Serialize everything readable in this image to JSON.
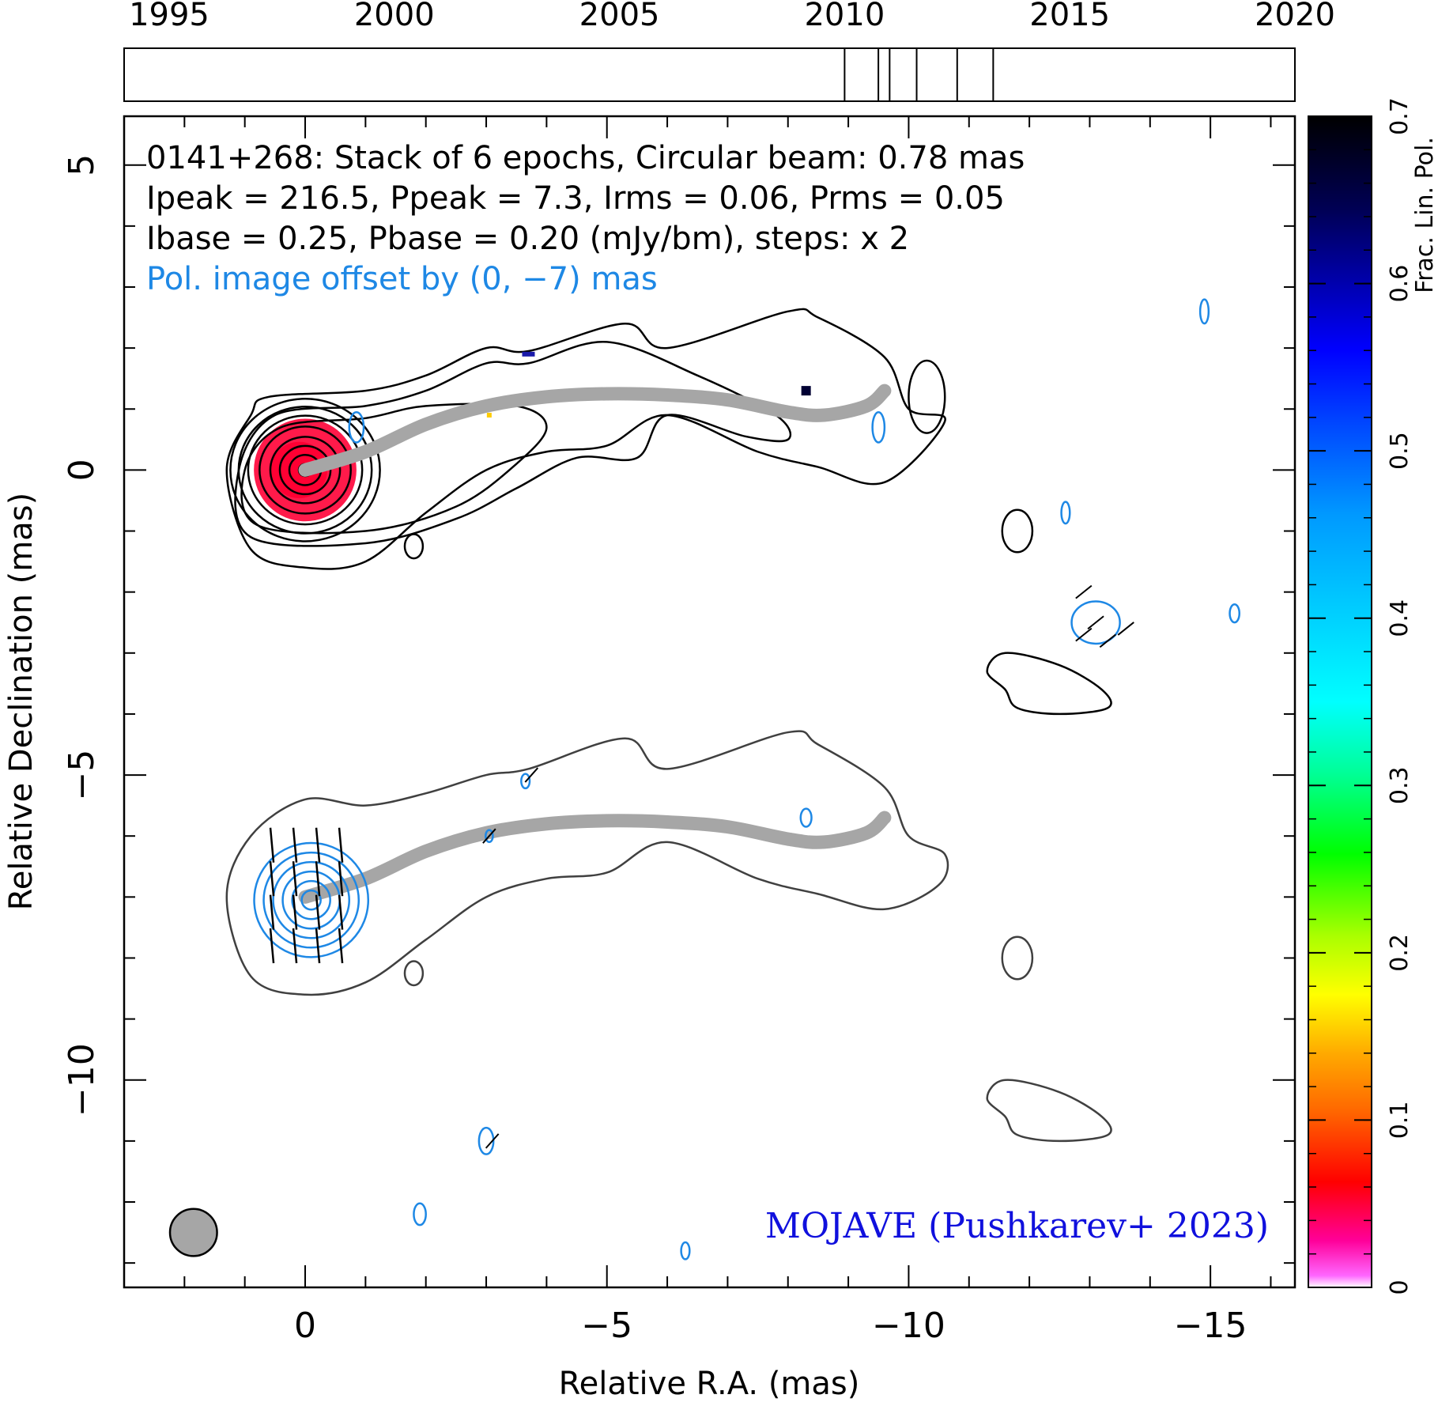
{
  "chart_data": {
    "type": "contour",
    "source_name": "0141+268",
    "annotations": {
      "line1": "0141+268: Stack of 6 epochs, Circular beam: 0.78 mas",
      "line2": "Ipeak = 216.5, Ppeak = 7.3, Irms = 0.06, Prms = 0.05",
      "line3": "Ibase = 0.25, Pbase = 0.20 (mJy/bm), steps: x 2",
      "line4": "Pol. image offset by (0, −7) mas",
      "credit": "MOJAVE (Pushkarev+ 2023)"
    },
    "xlabel": "Relative R.A. (mas)",
    "ylabel": "Relative Declination (mas)",
    "xlim": [
      3,
      -16.4
    ],
    "ylim": [
      -13.4,
      5.8
    ],
    "x_ticks": [
      0,
      -5,
      -10,
      -15
    ],
    "x_tick_labels": [
      "0",
      "−5",
      "−10",
      "−15"
    ],
    "y_ticks": [
      5,
      0,
      -5,
      -10
    ],
    "y_tick_labels": [
      "5",
      "0",
      "−5",
      "−10"
    ],
    "epoch_timeline": {
      "range": [
        1994,
        2020
      ],
      "tick_years": [
        1995,
        2000,
        2005,
        2010,
        2015,
        2020
      ],
      "tick_labels": [
        "1995",
        "2000",
        "2005",
        "2010",
        "2015",
        "2020"
      ],
      "epochs": [
        2010.0,
        2010.75,
        2011.0,
        2011.6,
        2012.5,
        2013.3
      ]
    },
    "colorbar": {
      "label": "Frac. Lin. Pol.",
      "range": [
        0,
        0.7
      ],
      "ticks": [
        0,
        0.1,
        0.2,
        0.3,
        0.4,
        0.5,
        0.6,
        0.7
      ],
      "tick_labels": [
        "0",
        "0.1",
        "0.2",
        "0.3",
        "0.4",
        "0.5",
        "0.6",
        "0.7"
      ]
    },
    "beam": {
      "diameter_mas": 0.78,
      "ra": 1.85,
      "dec": -12.5
    },
    "ridgeline_total": [
      [
        0,
        0
      ],
      [
        -1,
        0.3
      ],
      [
        -2,
        0.75
      ],
      [
        -3,
        1.05
      ],
      [
        -4,
        1.2
      ],
      [
        -5,
        1.25
      ],
      [
        -6,
        1.23
      ],
      [
        -7,
        1.15
      ],
      [
        -8,
        0.95
      ],
      [
        -8.6,
        0.9
      ],
      [
        -9.3,
        1.05
      ],
      [
        -9.6,
        1.3
      ]
    ],
    "ridgeline_pol": [
      [
        0,
        -7
      ],
      [
        -1,
        -6.7
      ],
      [
        -2,
        -6.25
      ],
      [
        -3,
        -5.95
      ],
      [
        -4,
        -5.8
      ],
      [
        -5,
        -5.75
      ],
      [
        -6,
        -5.77
      ],
      [
        -7,
        -5.85
      ],
      [
        -8,
        -6.05
      ],
      [
        -8.6,
        -6.1
      ],
      [
        -9.3,
        -5.95
      ],
      [
        -9.6,
        -5.7
      ]
    ],
    "core_fpol_patch": {
      "ra": 0,
      "dec": 0,
      "radius_mas": 0.85,
      "fpol": 0.03
    },
    "core_contours_ra_dec_radius": [
      0.1,
      0.25,
      0.4,
      0.55,
      0.72,
      0.9,
      1.05,
      1.18
    ],
    "jet_contours_total": [
      [
        [
          0.6,
          1.2
        ],
        [
          -1,
          1.3
        ],
        [
          -2,
          1.55
        ],
        [
          -3,
          2.0
        ],
        [
          -3.7,
          1.95
        ],
        [
          -5.3,
          2.4
        ],
        [
          -6,
          2.0
        ],
        [
          -8,
          2.6
        ],
        [
          -8.5,
          2.5
        ],
        [
          -9.6,
          1.85
        ],
        [
          -10,
          1.0
        ],
        [
          -10.6,
          0.8
        ],
        [
          -9.6,
          -0.2
        ],
        [
          -8.5,
          0.05
        ],
        [
          -7.5,
          0.3
        ],
        [
          -6,
          0.9
        ],
        [
          -5,
          0.4
        ],
        [
          -4,
          0.3
        ],
        [
          -3,
          0
        ],
        [
          -2,
          -0.7
        ],
        [
          -1,
          -1.5
        ],
        [
          0,
          -1.6
        ],
        [
          0.9,
          -1.3
        ],
        [
          1.3,
          0
        ],
        [
          0.9,
          0.9
        ]
      ],
      [
        [
          0.5,
          0.9
        ],
        [
          -1,
          1.05
        ],
        [
          -2,
          1.3
        ],
        [
          -3,
          1.75
        ],
        [
          -3.7,
          1.75
        ],
        [
          -5,
          2.1
        ],
        [
          -6.5,
          1.55
        ],
        [
          -7.8,
          0.9
        ],
        [
          -8,
          0.5
        ],
        [
          -7.3,
          0.55
        ],
        [
          -6,
          0.9
        ],
        [
          -5.5,
          0.2
        ],
        [
          -4.5,
          0.2
        ],
        [
          -3.5,
          -0.3
        ],
        [
          -2.5,
          -0.8
        ],
        [
          -1,
          -1.2
        ],
        [
          0.9,
          -1.1
        ],
        [
          1.1,
          0
        ]
      ],
      [
        [
          0.4,
          0.7
        ],
        [
          -1,
          0.85
        ],
        [
          -2,
          1.05
        ],
        [
          -3.5,
          1.05
        ],
        [
          -4,
          0.7
        ],
        [
          -3.5,
          0.1
        ],
        [
          -2.5,
          -0.6
        ],
        [
          -1,
          -1.0
        ],
        [
          0.8,
          -0.9
        ],
        [
          1.0,
          0
        ]
      ]
    ],
    "isolated_total_blobs": [
      {
        "ra": -1.8,
        "dec": -1.25,
        "rx": 0.15,
        "ry": 0.2
      },
      {
        "ra": -11.8,
        "dec": -1.0,
        "rx": 0.25,
        "ry": 0.35
      },
      {
        "ra": -10.3,
        "dec": 1.2,
        "rx": 0.3,
        "ry": 0.6
      }
    ],
    "pol_core_contour_radii": [
      0.15,
      0.3,
      0.45,
      0.6,
      0.75,
      0.9
    ]
  }
}
